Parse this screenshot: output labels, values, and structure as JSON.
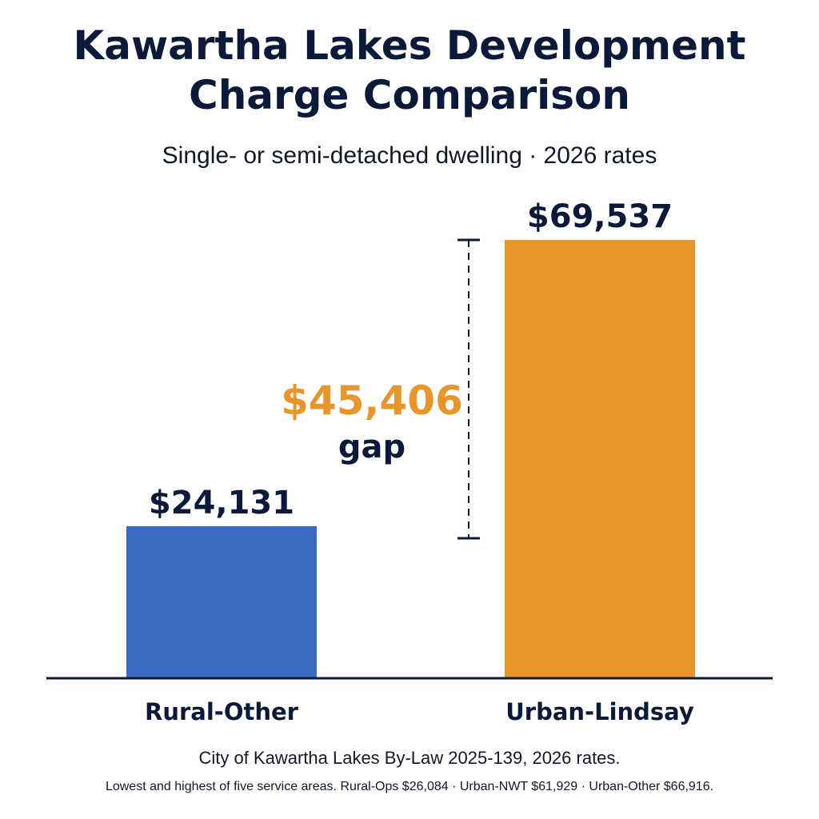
{
  "title_line1": "Kawartha Lakes Development",
  "title_line2": "Charge Comparison",
  "subtitle": "Single- or semi-detached dwelling · 2026 rates",
  "colors": {
    "rural": "#3a6bc2",
    "urban": "#e8952a",
    "text": "#0b1a3a",
    "gap": "#e8952a"
  },
  "chart_data": {
    "type": "bar",
    "categories": [
      "Rural-Other",
      "Urban-Lindsay"
    ],
    "values": [
      24131,
      69537
    ],
    "data_labels": [
      "$24,131",
      "$69,537"
    ],
    "ylim": [
      0,
      69537
    ],
    "grid": false,
    "annotation": {
      "value": 45406,
      "label": "$45,406",
      "text": "gap"
    }
  },
  "footnote_main": "City of Kawartha Lakes By-Law 2025-139, 2026 rates.",
  "footnote_detail": "Lowest and highest of five service areas. Rural-Ops $26,084 · Urban-NWT $61,929 · Urban-Other $66,916."
}
